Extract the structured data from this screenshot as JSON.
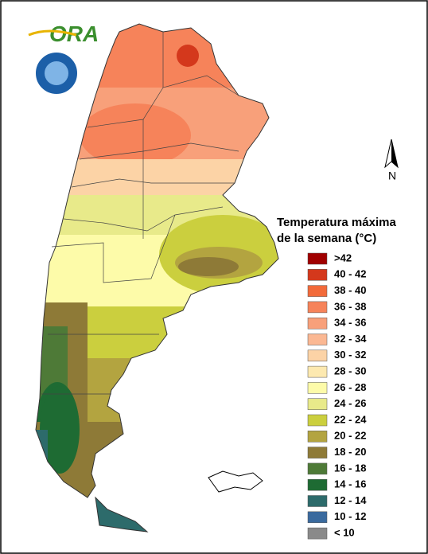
{
  "logo": {
    "text": "ORA"
  },
  "compass": {
    "label": "N"
  },
  "legend": {
    "title": [
      "Temperatura máxima",
      "de la semana (°C)"
    ],
    "items": [
      {
        "label": ">42",
        "color": "#a00000"
      },
      {
        "label": "40 - 42",
        "color": "#d4381c"
      },
      {
        "label": "38 - 40",
        "color": "#f26a3a"
      },
      {
        "label": "36 - 38",
        "color": "#f6835a"
      },
      {
        "label": "34 - 36",
        "color": "#f8a07a"
      },
      {
        "label": "32 - 34",
        "color": "#fbb893"
      },
      {
        "label": "30 - 32",
        "color": "#fcd3a6"
      },
      {
        "label": "28 - 30",
        "color": "#fde9b0"
      },
      {
        "label": "26 - 28",
        "color": "#fdfba9"
      },
      {
        "label": "24 - 26",
        "color": "#e8ea8a"
      },
      {
        "label": "22 - 24",
        "color": "#cbcf3e"
      },
      {
        "label": "20 - 22",
        "color": "#b3a440"
      },
      {
        "label": "18 - 20",
        "color": "#8e7a37"
      },
      {
        "label": "16 - 18",
        "color": "#4e7a37"
      },
      {
        "label": "14 - 16",
        "color": "#1e6b33"
      },
      {
        "label": "12 - 14",
        "color": "#2d6b6b"
      },
      {
        "label": "10 - 12",
        "color": "#3a6a9e"
      },
      {
        "label": "< 10",
        "color": "#8a8a8a"
      }
    ]
  }
}
